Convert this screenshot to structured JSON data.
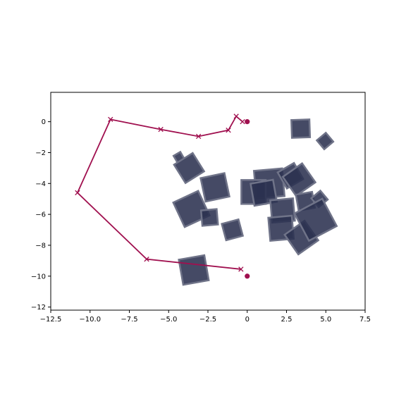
{
  "chart_data": {
    "type": "scatter",
    "title": "",
    "xlabel": "",
    "ylabel": "",
    "xlim": [
      -12.5,
      7.5
    ],
    "ylim": [
      -12.2,
      1.9
    ],
    "grid": false,
    "x_ticks": [
      -12.5,
      -10.0,
      -7.5,
      -5.0,
      -2.5,
      0.0,
      2.5,
      5.0,
      7.5
    ],
    "x_tick_labels": [
      "−12.5",
      "−10.0",
      "−7.5",
      "−5.0",
      "−2.5",
      "0",
      "2.5",
      "5.0",
      "7.5"
    ],
    "y_ticks": [
      0,
      -2,
      -4,
      -6,
      -8,
      -10,
      -12
    ],
    "y_tick_labels": [
      "0",
      "−2",
      "−4",
      "−6",
      "−8",
      "−10",
      "−12"
    ],
    "colors": {
      "path": "#a0104f",
      "obstacle_fill": "#2b3150",
      "obstacle_edge": "#6f7388"
    },
    "path": [
      {
        "x": -0.3,
        "y": 0.0
      },
      {
        "x": -0.7,
        "y": 0.35
      },
      {
        "x": -1.2,
        "y": -0.55
      },
      {
        "x": -3.1,
        "y": -0.95
      },
      {
        "x": -5.5,
        "y": -0.5
      },
      {
        "x": -8.7,
        "y": 0.15
      },
      {
        "x": -10.8,
        "y": -4.6
      },
      {
        "x": -6.4,
        "y": -8.9
      },
      {
        "x": -0.4,
        "y": -9.55
      }
    ],
    "markers": [
      {
        "x": 0.0,
        "y": 0.0
      },
      {
        "x": 0.0,
        "y": -10.0
      }
    ],
    "obstacles": [
      {
        "cx": 3.4,
        "cy": -0.45,
        "size": 1.15,
        "angle": 2
      },
      {
        "cx": 4.95,
        "cy": -1.25,
        "size": 0.75,
        "angle": 40
      },
      {
        "cx": -4.35,
        "cy": -2.3,
        "size": 0.5,
        "angle": 30
      },
      {
        "cx": -3.7,
        "cy": -3.0,
        "size": 1.4,
        "angle": 32
      },
      {
        "cx": -2.05,
        "cy": -4.25,
        "size": 1.55,
        "angle": 12
      },
      {
        "cx": -3.55,
        "cy": -5.65,
        "size": 1.75,
        "angle": 25
      },
      {
        "cx": -2.4,
        "cy": -6.2,
        "size": 1.0,
        "angle": 5
      },
      {
        "cx": -0.95,
        "cy": -7.0,
        "size": 1.1,
        "angle": 15
      },
      {
        "cx": 1.4,
        "cy": -4.0,
        "size": 1.8,
        "angle": 5
      },
      {
        "cx": 0.4,
        "cy": -4.55,
        "size": 1.55,
        "angle": 0
      },
      {
        "cx": 1.05,
        "cy": -4.6,
        "size": 1.45,
        "angle": 10
      },
      {
        "cx": 2.75,
        "cy": -3.5,
        "size": 1.2,
        "angle": 30
      },
      {
        "cx": 3.3,
        "cy": -3.75,
        "size": 1.5,
        "angle": 35
      },
      {
        "cx": 2.25,
        "cy": -5.75,
        "size": 1.45,
        "angle": 5
      },
      {
        "cx": 3.7,
        "cy": -5.15,
        "size": 1.05,
        "angle": 10
      },
      {
        "cx": 4.6,
        "cy": -5.0,
        "size": 0.75,
        "angle": 40
      },
      {
        "cx": 2.15,
        "cy": -6.9,
        "size": 1.5,
        "angle": 5
      },
      {
        "cx": 3.45,
        "cy": -7.5,
        "size": 1.55,
        "angle": 35
      },
      {
        "cx": 4.35,
        "cy": -6.35,
        "size": 2.0,
        "angle": 28
      },
      {
        "cx": -3.4,
        "cy": -9.6,
        "size": 1.65,
        "angle": 10
      }
    ]
  }
}
